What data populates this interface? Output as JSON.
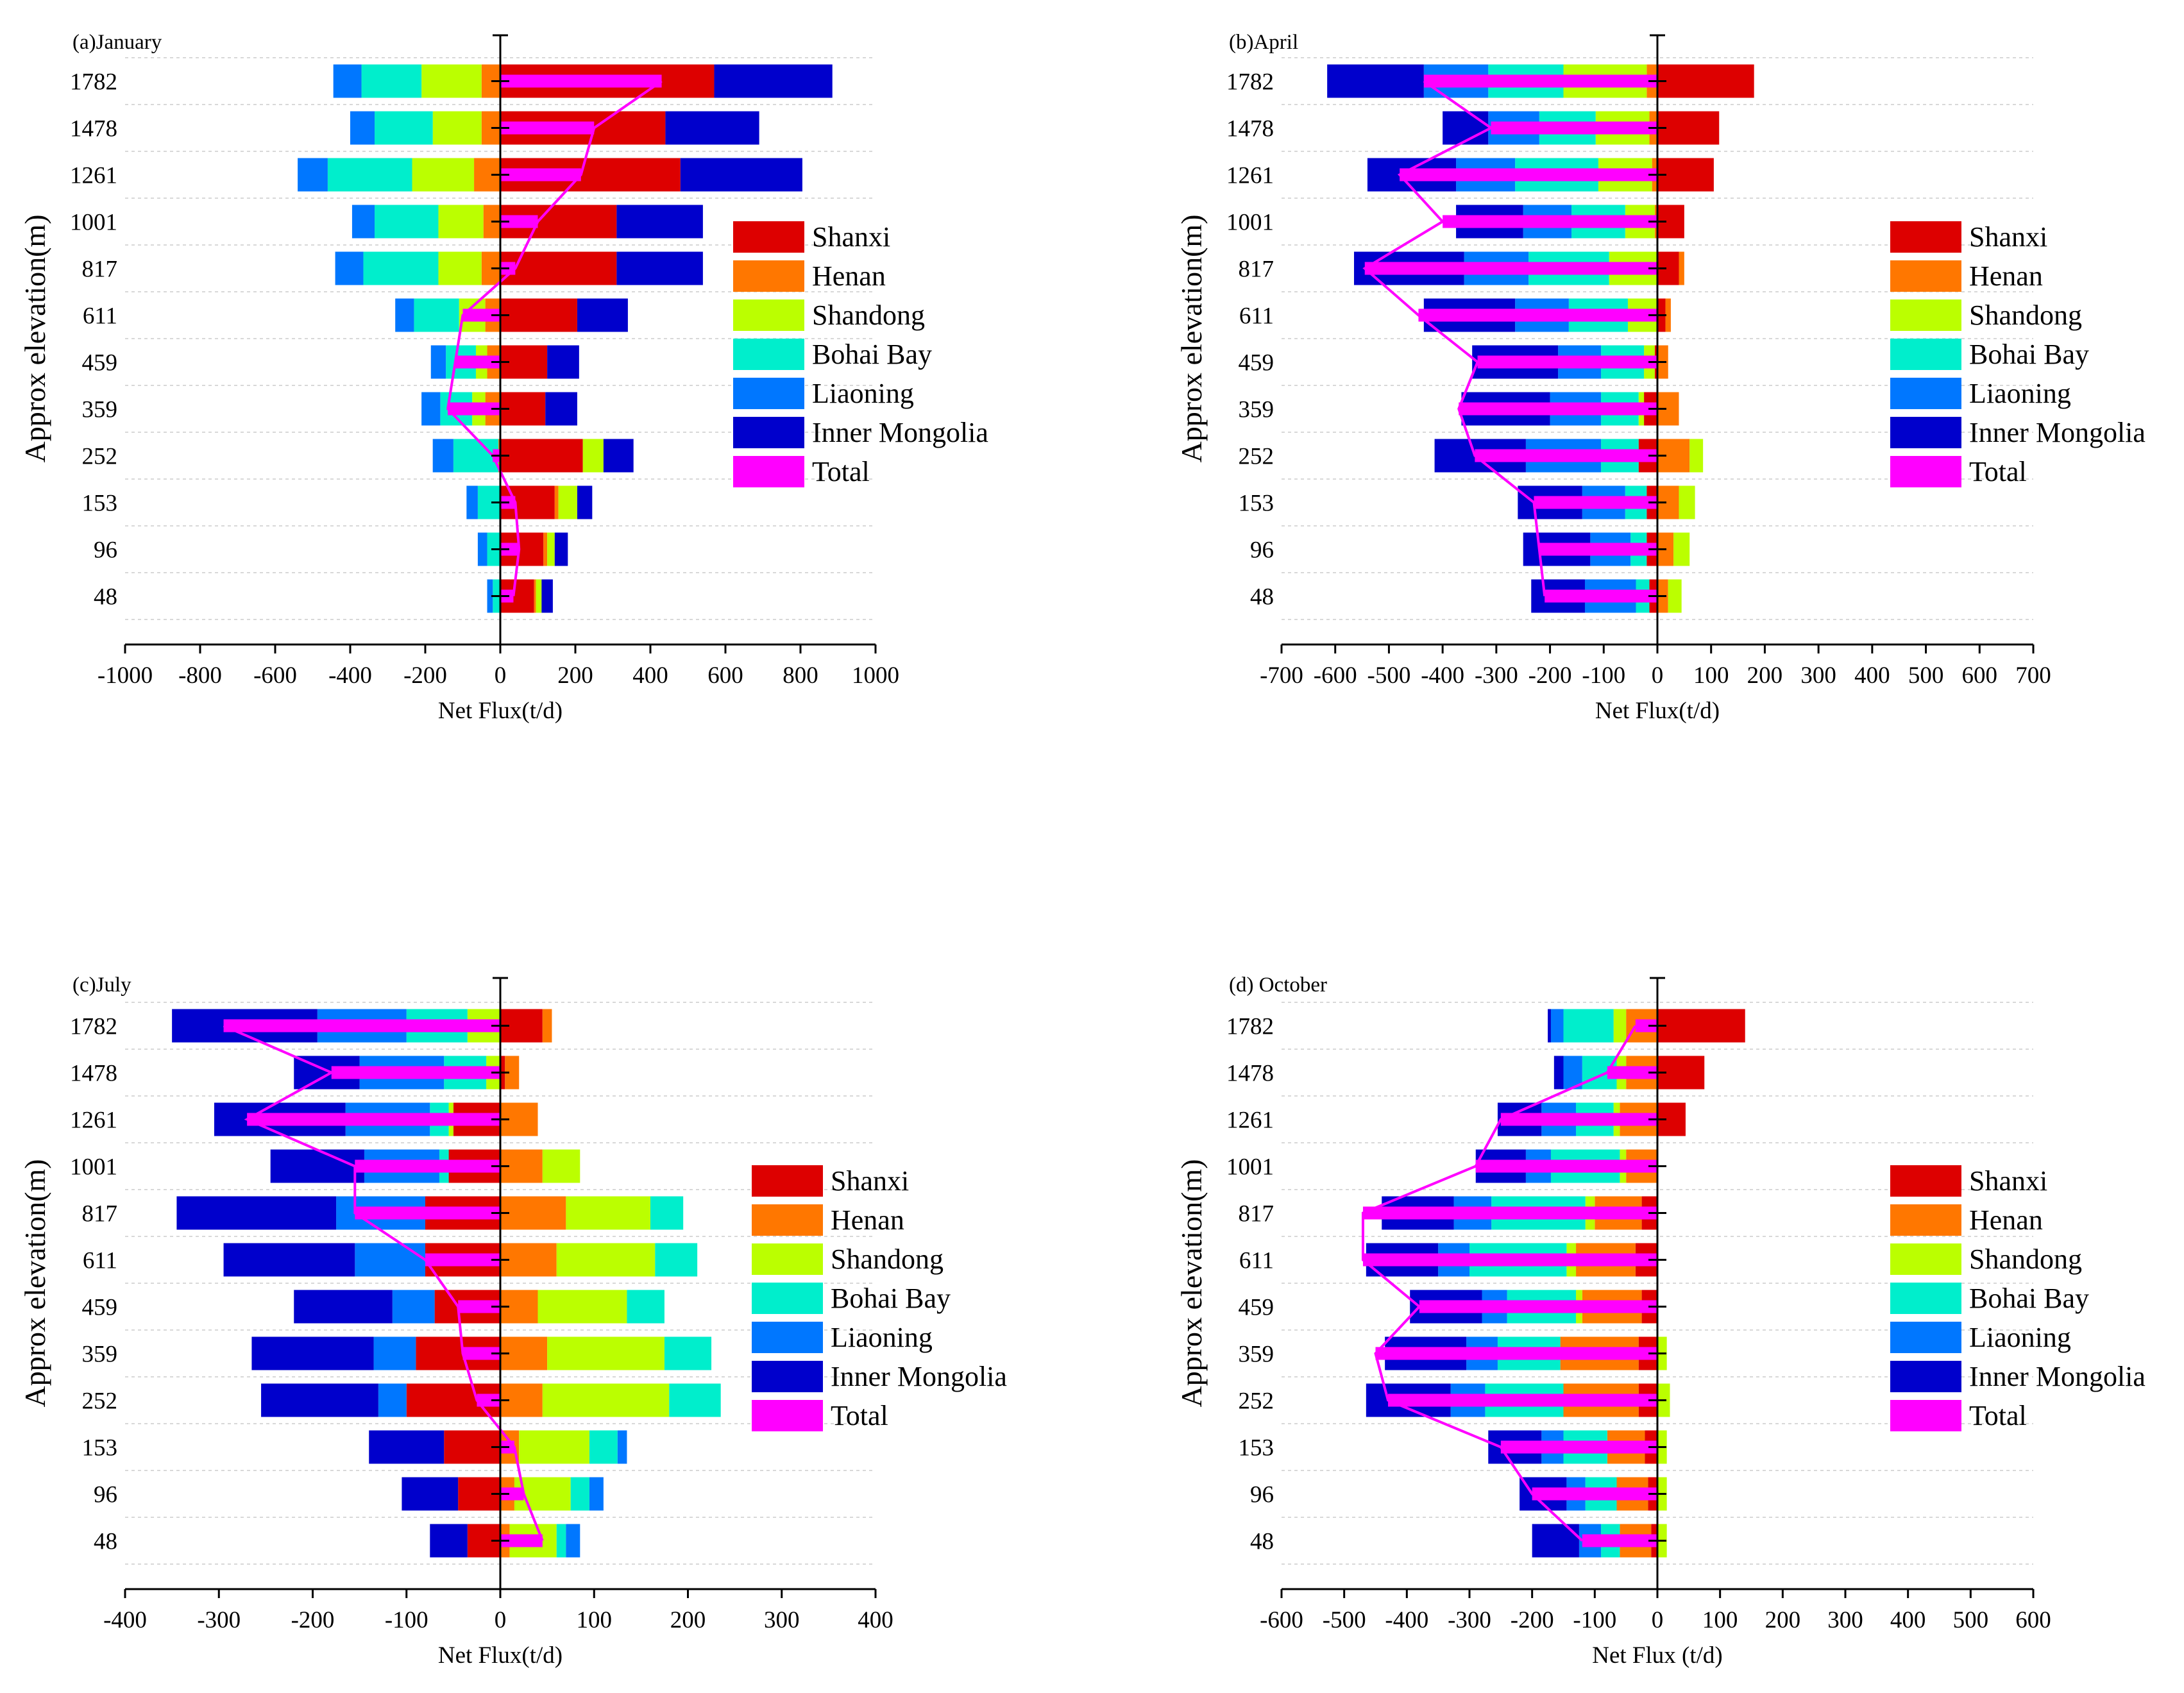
{
  "chart_data": [
    {
      "type": "bar",
      "title": "(a)January",
      "xlabel": "Net Flux(t/d)",
      "ylabel": "Approx elevation(m)",
      "xlim": [
        -1000,
        1000
      ],
      "xticks": [
        -1000,
        -800,
        -600,
        -400,
        -200,
        0,
        200,
        400,
        600,
        800,
        1000
      ],
      "categories": [
        "1782",
        "1478",
        "1261",
        "1001",
        "817",
        "611",
        "459",
        "359",
        "252",
        "153",
        "96",
        "48"
      ],
      "legend_position": "right",
      "stacking": "diverging",
      "series": [
        {
          "name": "Shanxi",
          "color": "#dd0000",
          "values": [
            570,
            440,
            480,
            310,
            310,
            205,
            125,
            120,
            220,
            145,
            115,
            90
          ]
        },
        {
          "name": "Henan",
          "color": "#ff7700",
          "values": [
            -50,
            -50,
            -70,
            -45,
            -50,
            -40,
            -35,
            -40,
            -5,
            10,
            10,
            5
          ]
        },
        {
          "name": "Shandong",
          "color": "#bbff00",
          "values": [
            -160,
            -130,
            -165,
            -120,
            -115,
            -70,
            -30,
            -35,
            55,
            50,
            20,
            15
          ]
        },
        {
          "name": "Bohai Bay",
          "color": "#00eecc",
          "values": [
            -160,
            -155,
            -225,
            -170,
            -200,
            -120,
            -80,
            -85,
            -120,
            -60,
            -35,
            -20
          ]
        },
        {
          "name": "Liaoning",
          "color": "#0077ff",
          "values": [
            -75,
            -65,
            -80,
            -60,
            -75,
            -50,
            -40,
            -50,
            -55,
            -30,
            -25,
            -15
          ]
        },
        {
          "name": "Inner Mongolia",
          "color": "#0000cc",
          "values": [
            315,
            250,
            325,
            230,
            230,
            135,
            85,
            85,
            80,
            40,
            35,
            30
          ]
        }
      ],
      "total": {
        "name": "Total",
        "color": "#ff00ff",
        "values": [
          430,
          250,
          215,
          100,
          40,
          -100,
          -120,
          -140,
          -20,
          40,
          50,
          35
        ]
      }
    },
    {
      "type": "bar",
      "title": "(b)April",
      "xlabel": "Net Flux(t/d)",
      "ylabel": "Approx elevation(m)",
      "xlim": [
        -700,
        700
      ],
      "xticks": [
        -700,
        -600,
        -500,
        -400,
        -300,
        -200,
        -100,
        0,
        100,
        200,
        300,
        400,
        500,
        600,
        700
      ],
      "categories": [
        "1782",
        "1478",
        "1261",
        "1001",
        "817",
        "611",
        "459",
        "359",
        "252",
        "153",
        "96",
        "48"
      ],
      "legend_position": "right",
      "stacking": "diverging",
      "series": [
        {
          "name": "Shanxi",
          "color": "#dd0000",
          "values": [
            180,
            115,
            105,
            50,
            40,
            15,
            -5,
            -25,
            -35,
            -20,
            -20,
            -15
          ]
        },
        {
          "name": "Henan",
          "color": "#ff7700",
          "values": [
            -20,
            -15,
            -10,
            -5,
            10,
            10,
            20,
            40,
            60,
            40,
            30,
            20
          ]
        },
        {
          "name": "Shandong",
          "color": "#bbff00",
          "values": [
            -155,
            -100,
            -100,
            -55,
            -90,
            -55,
            -20,
            -10,
            25,
            30,
            30,
            25
          ]
        },
        {
          "name": "Bohai Bay",
          "color": "#00eecc",
          "values": [
            -140,
            -105,
            -155,
            -100,
            -150,
            -110,
            -80,
            -70,
            -70,
            -40,
            -30,
            -25
          ]
        },
        {
          "name": "Liaoning",
          "color": "#0077ff",
          "values": [
            -120,
            -95,
            -110,
            -90,
            -120,
            -100,
            -80,
            -95,
            -140,
            -80,
            -75,
            -95
          ]
        },
        {
          "name": "Inner Mongolia",
          "color": "#0000cc",
          "values": [
            -180,
            -85,
            -165,
            -125,
            -205,
            -170,
            -160,
            -165,
            -170,
            -120,
            -125,
            -100
          ]
        }
      ],
      "total": {
        "name": "Total",
        "color": "#ff00ff",
        "values": [
          -435,
          -310,
          -480,
          -400,
          -545,
          -445,
          -335,
          -370,
          -340,
          -230,
          -220,
          -210
        ]
      }
    },
    {
      "type": "bar",
      "title": "(c)July",
      "xlabel": "Net Flux(t/d)",
      "ylabel": "Approx elevation(m)",
      "xlim": [
        -400,
        400
      ],
      "xticks": [
        -400,
        -300,
        -200,
        -100,
        0,
        100,
        200,
        300,
        400
      ],
      "categories": [
        "1782",
        "1478",
        "1261",
        "1001",
        "817",
        "611",
        "459",
        "359",
        "252",
        "153",
        "96",
        "48"
      ],
      "legend_position": "right",
      "stacking": "diverging",
      "series": [
        {
          "name": "Shanxi",
          "color": "#dd0000",
          "values": [
            45,
            5,
            -50,
            -55,
            -80,
            -80,
            -70,
            -90,
            -100,
            -60,
            -45,
            -35
          ]
        },
        {
          "name": "Henan",
          "color": "#ff7700",
          "values": [
            10,
            15,
            40,
            45,
            70,
            60,
            40,
            50,
            45,
            20,
            15,
            10
          ]
        },
        {
          "name": "Shandong",
          "color": "#bbff00",
          "values": [
            -35,
            -15,
            -5,
            40,
            90,
            105,
            95,
            125,
            135,
            75,
            60,
            50
          ]
        },
        {
          "name": "Bohai Bay",
          "color": "#00eecc",
          "values": [
            -65,
            -45,
            -20,
            -10,
            35,
            45,
            40,
            50,
            55,
            30,
            20,
            10
          ]
        },
        {
          "name": "Liaoning",
          "color": "#0077ff",
          "values": [
            -95,
            -90,
            -90,
            -80,
            -95,
            -75,
            -45,
            -45,
            -30,
            10,
            15,
            15
          ]
        },
        {
          "name": "Inner Mongolia",
          "color": "#0000cc",
          "values": [
            -155,
            -70,
            -140,
            -100,
            -170,
            -140,
            -105,
            -130,
            -125,
            -80,
            -60,
            -40
          ]
        }
      ],
      "total": {
        "name": "Total",
        "color": "#ff00ff",
        "values": [
          -295,
          -180,
          -270,
          -155,
          -155,
          -80,
          -45,
          -40,
          -25,
          15,
          25,
          45
        ]
      }
    },
    {
      "type": "bar",
      "title": "(d) October",
      "xlabel": "Net Flux (t/d)",
      "ylabel": "Approx elevation(m)",
      "xlim": [
        -600,
        600
      ],
      "xticks": [
        -600,
        -500,
        -400,
        -300,
        -200,
        -100,
        0,
        100,
        200,
        300,
        400,
        500,
        600
      ],
      "categories": [
        "1782",
        "1478",
        "1261",
        "1001",
        "817",
        "611",
        "459",
        "359",
        "252",
        "153",
        "96",
        "48"
      ],
      "legend_position": "right",
      "stacking": "diverging",
      "series": [
        {
          "name": "Shanxi",
          "color": "#dd0000",
          "values": [
            140,
            75,
            45,
            0,
            -25,
            -35,
            -25,
            -30,
            -30,
            -20,
            -15,
            -10
          ]
        },
        {
          "name": "Henan",
          "color": "#ff7700",
          "values": [
            -50,
            -50,
            -60,
            -50,
            -75,
            -95,
            -95,
            -125,
            -120,
            -60,
            -50,
            -50
          ]
        },
        {
          "name": "Shandong",
          "color": "#bbff00",
          "values": [
            -20,
            -15,
            -10,
            -10,
            -15,
            -15,
            -10,
            15,
            20,
            15,
            15,
            15
          ]
        },
        {
          "name": "Bohai Bay",
          "color": "#00eecc",
          "values": [
            -80,
            -55,
            -60,
            -110,
            -150,
            -155,
            -110,
            -100,
            -125,
            -70,
            -50,
            -30
          ]
        },
        {
          "name": "Liaoning",
          "color": "#0077ff",
          "values": [
            -20,
            -30,
            -55,
            -40,
            -60,
            -50,
            -40,
            -50,
            -55,
            -35,
            -30,
            -35
          ]
        },
        {
          "name": "Inner Mongolia",
          "color": "#0000cc",
          "values": [
            -5,
            -15,
            -70,
            -80,
            -115,
            -115,
            -115,
            -130,
            -135,
            -85,
            -75,
            -75
          ]
        }
      ],
      "total": {
        "name": "Total",
        "color": "#ff00ff",
        "values": [
          -35,
          -80,
          -250,
          -290,
          -470,
          -470,
          -380,
          -450,
          -430,
          -250,
          -200,
          -120
        ]
      }
    }
  ]
}
